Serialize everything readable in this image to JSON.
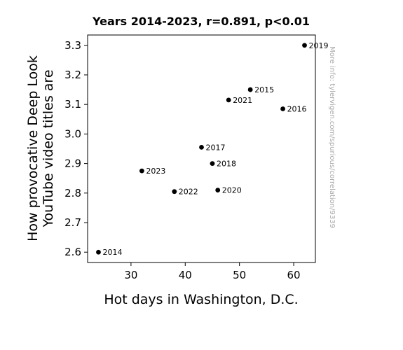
{
  "chart_data": {
    "type": "scatter",
    "title": "Years 2014-2023, r=0.891, p<0.01",
    "xlabel": "Hot days in Washington, D.C.",
    "ylabel_lines": [
      "How provocative Deep Look",
      "YouTube video titles are"
    ],
    "xlim": [
      22,
      64
    ],
    "ylim": [
      2.565,
      3.335
    ],
    "xticks": [
      30,
      40,
      50,
      60
    ],
    "yticks": [
      2.6,
      2.7,
      2.8,
      2.9,
      3.0,
      3.1,
      3.2,
      3.3
    ],
    "ytick_labels": [
      "2.6",
      "2.7",
      "2.8",
      "2.9",
      "3.0",
      "3.1",
      "3.2",
      "3.3"
    ],
    "grid": false,
    "marker_color": "#000000",
    "points": [
      {
        "label": "2014",
        "x": 24,
        "y": 2.6
      },
      {
        "label": "2015",
        "x": 52,
        "y": 3.15
      },
      {
        "label": "2016",
        "x": 58,
        "y": 3.085
      },
      {
        "label": "2017",
        "x": 43,
        "y": 2.955
      },
      {
        "label": "2018",
        "x": 45,
        "y": 2.9
      },
      {
        "label": "2019",
        "x": 62,
        "y": 3.3
      },
      {
        "label": "2020",
        "x": 46,
        "y": 2.81
      },
      {
        "label": "2021",
        "x": 48,
        "y": 3.115
      },
      {
        "label": "2022",
        "x": 38,
        "y": 2.805
      },
      {
        "label": "2023",
        "x": 32,
        "y": 2.875
      }
    ],
    "watermark": "More info: tylervigen.com/spurious/correlation/9339"
  }
}
